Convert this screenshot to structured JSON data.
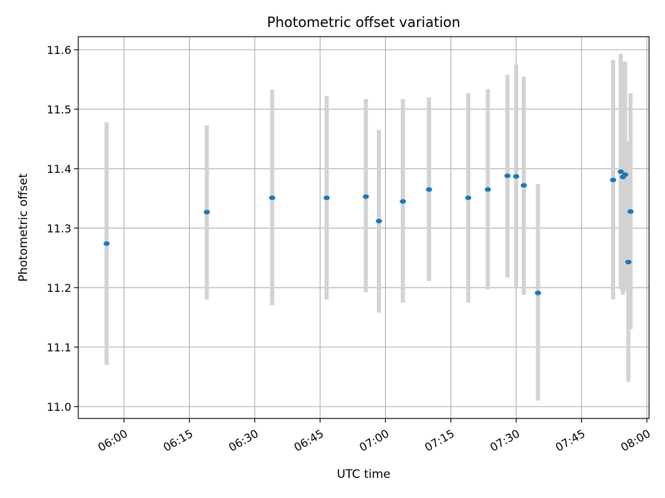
{
  "chart_data": {
    "type": "scatter",
    "title": "Photometric offset variation",
    "xlabel": "UTC time",
    "ylabel": "Photometric offset",
    "xlim": [
      "05:49:30",
      "08:00:30"
    ],
    "ylim": [
      10.98,
      11.622
    ],
    "grid": true,
    "x_ticks": [
      "06:00",
      "06:15",
      "06:30",
      "06:45",
      "07:00",
      "07:15",
      "07:30",
      "07:45",
      "08:00"
    ],
    "y_ticks": [
      "11.0",
      "11.1",
      "11.2",
      "11.3",
      "11.4",
      "11.5",
      "11.6"
    ],
    "series": [
      {
        "marker": "point",
        "errorbar": true,
        "color": "#1f77b4",
        "errorbar_color": "#d3d3d3",
        "points": [
          {
            "x": "05:56:00",
            "y": 11.274,
            "ylow": 11.07,
            "yhigh": 11.478
          },
          {
            "x": "06:19:00",
            "y": 11.327,
            "ylow": 11.18,
            "yhigh": 11.473
          },
          {
            "x": "06:34:00",
            "y": 11.351,
            "ylow": 11.17,
            "yhigh": 11.533
          },
          {
            "x": "06:46:30",
            "y": 11.351,
            "ylow": 11.18,
            "yhigh": 11.522
          },
          {
            "x": "06:55:30",
            "y": 11.353,
            "ylow": 11.192,
            "yhigh": 11.517
          },
          {
            "x": "06:58:30",
            "y": 11.312,
            "ylow": 11.158,
            "yhigh": 11.465
          },
          {
            "x": "07:04:00",
            "y": 11.345,
            "ylow": 11.175,
            "yhigh": 11.517
          },
          {
            "x": "07:10:00",
            "y": 11.365,
            "ylow": 11.211,
            "yhigh": 11.52
          },
          {
            "x": "07:19:00",
            "y": 11.351,
            "ylow": 11.175,
            "yhigh": 11.527
          },
          {
            "x": "07:23:30",
            "y": 11.365,
            "ylow": 11.197,
            "yhigh": 11.534
          },
          {
            "x": "07:28:00",
            "y": 11.388,
            "ylow": 11.217,
            "yhigh": 11.558
          },
          {
            "x": "07:30:00",
            "y": 11.387,
            "ylow": 11.2,
            "yhigh": 11.575
          },
          {
            "x": "07:31:45",
            "y": 11.372,
            "ylow": 11.188,
            "yhigh": 11.555
          },
          {
            "x": "07:35:00",
            "y": 11.191,
            "ylow": 11.01,
            "yhigh": 11.374
          },
          {
            "x": "07:52:15",
            "y": 11.381,
            "ylow": 11.18,
            "yhigh": 11.583
          },
          {
            "x": "07:54:00",
            "y": 11.395,
            "ylow": 11.197,
            "yhigh": 11.593
          },
          {
            "x": "07:54:30",
            "y": 11.386,
            "ylow": 11.188,
            "yhigh": 11.58
          },
          {
            "x": "07:55:00",
            "y": 11.39,
            "ylow": 11.195,
            "yhigh": 11.58
          },
          {
            "x": "07:55:45",
            "y": 11.243,
            "ylow": 11.042,
            "yhigh": 11.445
          },
          {
            "x": "07:56:15",
            "y": 11.328,
            "ylow": 11.13,
            "yhigh": 11.527
          }
        ]
      }
    ]
  }
}
